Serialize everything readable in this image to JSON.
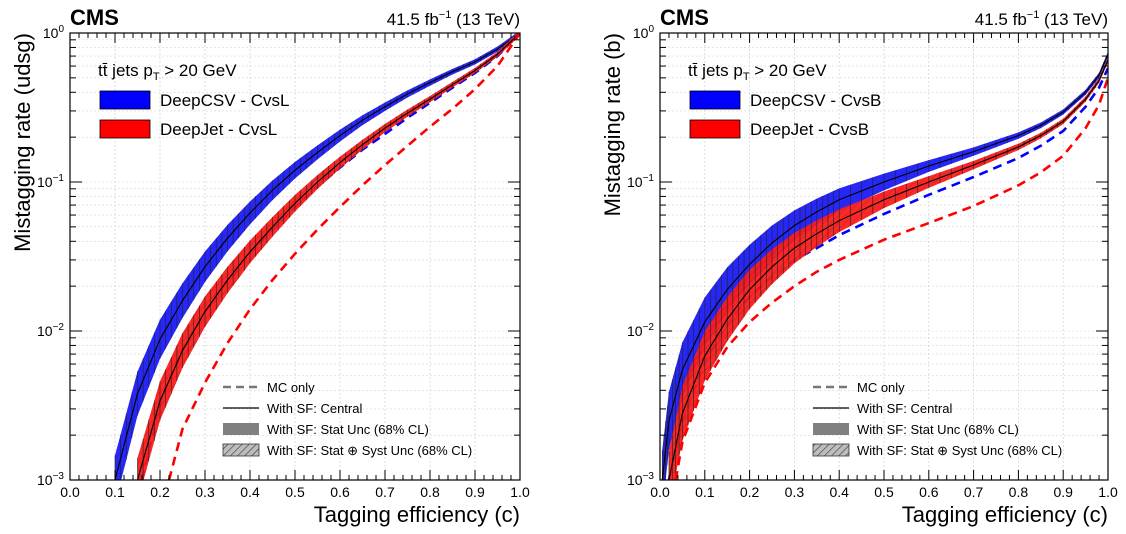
{
  "chart_data": [
    {
      "type": "line",
      "experiment": "CMS",
      "lumi_text": "41.5 fb",
      "lumi_sup": "−1",
      "energy_text": " (13 TeV)",
      "xlabel": "Tagging efficiency (c)",
      "ylabel": "Mistagging rate (udsg)",
      "xlim": [
        0.0,
        1.0
      ],
      "ylim": [
        0.001,
        1.0
      ],
      "yscale": "log",
      "grid": true,
      "x_ticks": [
        "0.0",
        "0.1",
        "0.2",
        "0.3",
        "0.4",
        "0.5",
        "0.6",
        "0.7",
        "0.8",
        "0.9",
        "1.0"
      ],
      "y_ticks": [
        {
          "base": "10",
          "exp": "−3",
          "value": 0.001
        },
        {
          "base": "10",
          "exp": "−2",
          "value": 0.01
        },
        {
          "base": "10",
          "exp": "−1",
          "value": 0.1
        },
        {
          "base": "10",
          "exp": "0",
          "value": 1
        }
      ],
      "selection_label": {
        "prefix": "tt̄ jets p",
        "sub": "T",
        "suffix": " >  20 GeV"
      },
      "legend_position": "top-left",
      "series": [
        {
          "name": "DeepCSV - CvsL",
          "color": "#0000ff",
          "band_color": "#1a1aff",
          "central": [
            [
              0.1,
              0.001
            ],
            [
              0.15,
              0.0038
            ],
            [
              0.2,
              0.0088
            ],
            [
              0.25,
              0.016
            ],
            [
              0.3,
              0.027
            ],
            [
              0.35,
              0.042
            ],
            [
              0.4,
              0.062
            ],
            [
              0.45,
              0.088
            ],
            [
              0.5,
              0.12
            ],
            [
              0.55,
              0.158
            ],
            [
              0.6,
              0.205
            ],
            [
              0.65,
              0.26
            ],
            [
              0.7,
              0.32
            ],
            [
              0.75,
              0.39
            ],
            [
              0.8,
              0.465
            ],
            [
              0.85,
              0.55
            ],
            [
              0.9,
              0.64
            ],
            [
              0.95,
              0.78
            ],
            [
              1.0,
              1.0
            ]
          ],
          "mc_only": [
            [
              0.16,
              0.001
            ],
            [
              0.2,
              0.0033
            ],
            [
              0.25,
              0.0075
            ],
            [
              0.3,
              0.0135
            ],
            [
              0.35,
              0.0215
            ],
            [
              0.4,
              0.033
            ],
            [
              0.45,
              0.048
            ],
            [
              0.5,
              0.068
            ],
            [
              0.55,
              0.093
            ],
            [
              0.6,
              0.125
            ],
            [
              0.65,
              0.165
            ],
            [
              0.7,
              0.21
            ],
            [
              0.75,
              0.27
            ],
            [
              0.8,
              0.34
            ],
            [
              0.85,
              0.43
            ],
            [
              0.9,
              0.54
            ],
            [
              0.95,
              0.7
            ],
            [
              1.0,
              1.0
            ]
          ]
        },
        {
          "name": "DeepJet - CvsL",
          "color": "#ff0000",
          "band_color": "#ff1a1a",
          "central": [
            [
              0.15,
              0.001
            ],
            [
              0.2,
              0.0034
            ],
            [
              0.25,
              0.0074
            ],
            [
              0.3,
              0.0135
            ],
            [
              0.35,
              0.022
            ],
            [
              0.4,
              0.034
            ],
            [
              0.45,
              0.05
            ],
            [
              0.5,
              0.072
            ],
            [
              0.55,
              0.1
            ],
            [
              0.6,
              0.135
            ],
            [
              0.65,
              0.178
            ],
            [
              0.7,
              0.23
            ],
            [
              0.75,
              0.29
            ],
            [
              0.8,
              0.36
            ],
            [
              0.85,
              0.45
            ],
            [
              0.9,
              0.56
            ],
            [
              0.95,
              0.72
            ],
            [
              1.0,
              1.0
            ]
          ],
          "mc_only": [
            [
              0.22,
              0.001
            ],
            [
              0.25,
              0.0022
            ],
            [
              0.3,
              0.0045
            ],
            [
              0.35,
              0.0083
            ],
            [
              0.4,
              0.014
            ],
            [
              0.45,
              0.022
            ],
            [
              0.5,
              0.033
            ],
            [
              0.55,
              0.048
            ],
            [
              0.6,
              0.068
            ],
            [
              0.65,
              0.095
            ],
            [
              0.7,
              0.13
            ],
            [
              0.75,
              0.175
            ],
            [
              0.8,
              0.235
            ],
            [
              0.85,
              0.31
            ],
            [
              0.9,
              0.42
            ],
            [
              0.95,
              0.6
            ],
            [
              1.0,
              1.0
            ]
          ]
        }
      ]
    },
    {
      "type": "line",
      "experiment": "CMS",
      "lumi_text": "41.5 fb",
      "lumi_sup": "−1",
      "energy_text": " (13 TeV)",
      "xlabel": "Tagging efficiency (c)",
      "ylabel": "Mistagging rate (b)",
      "xlim": [
        0.0,
        1.0
      ],
      "ylim": [
        0.001,
        1.0
      ],
      "yscale": "log",
      "grid": true,
      "x_ticks": [
        "0.0",
        "0.1",
        "0.2",
        "0.3",
        "0.4",
        "0.5",
        "0.6",
        "0.7",
        "0.8",
        "0.9",
        "1.0"
      ],
      "y_ticks": [
        {
          "base": "10",
          "exp": "−3",
          "value": 0.001
        },
        {
          "base": "10",
          "exp": "−2",
          "value": 0.01
        },
        {
          "base": "10",
          "exp": "−1",
          "value": 0.1
        },
        {
          "base": "10",
          "exp": "0",
          "value": 1
        }
      ],
      "selection_label": {
        "prefix": "tt̄ jets p",
        "sub": "T",
        "suffix": " >  20 GeV"
      },
      "legend_position": "top-left",
      "series": [
        {
          "name": "DeepCSV - CvsB",
          "color": "#0000ff",
          "band_color": "#1a1aff",
          "central": [
            [
              0.005,
              0.001
            ],
            [
              0.02,
              0.0025
            ],
            [
              0.05,
              0.0055
            ],
            [
              0.1,
              0.0115
            ],
            [
              0.15,
              0.019
            ],
            [
              0.2,
              0.028
            ],
            [
              0.25,
              0.039
            ],
            [
              0.3,
              0.051
            ],
            [
              0.35,
              0.063
            ],
            [
              0.4,
              0.076
            ],
            [
              0.5,
              0.1
            ],
            [
              0.6,
              0.128
            ],
            [
              0.7,
              0.16
            ],
            [
              0.8,
              0.205
            ],
            [
              0.85,
              0.24
            ],
            [
              0.9,
              0.295
            ],
            [
              0.95,
              0.4
            ],
            [
              0.98,
              0.52
            ],
            [
              1.0,
              0.72
            ]
          ],
          "mc_only": [
            [
              0.02,
              0.001
            ],
            [
              0.05,
              0.0025
            ],
            [
              0.1,
              0.0062
            ],
            [
              0.15,
              0.011
            ],
            [
              0.2,
              0.017
            ],
            [
              0.25,
              0.023
            ],
            [
              0.3,
              0.03
            ],
            [
              0.35,
              0.036
            ],
            [
              0.4,
              0.044
            ],
            [
              0.5,
              0.061
            ],
            [
              0.6,
              0.082
            ],
            [
              0.7,
              0.108
            ],
            [
              0.8,
              0.145
            ],
            [
              0.85,
              0.175
            ],
            [
              0.9,
              0.22
            ],
            [
              0.95,
              0.32
            ],
            [
              0.98,
              0.43
            ],
            [
              1.0,
              0.58
            ]
          ]
        },
        {
          "name": "DeepJet - CvsB",
          "color": "#ff0000",
          "band_color": "#ff1a1a",
          "central": [
            [
              0.02,
              0.001
            ],
            [
              0.05,
              0.0028
            ],
            [
              0.1,
              0.0068
            ],
            [
              0.15,
              0.012
            ],
            [
              0.2,
              0.019
            ],
            [
              0.25,
              0.027
            ],
            [
              0.3,
              0.036
            ],
            [
              0.35,
              0.045
            ],
            [
              0.4,
              0.055
            ],
            [
              0.5,
              0.076
            ],
            [
              0.6,
              0.1
            ],
            [
              0.7,
              0.13
            ],
            [
              0.8,
              0.172
            ],
            [
              0.85,
              0.205
            ],
            [
              0.9,
              0.255
            ],
            [
              0.95,
              0.36
            ],
            [
              0.98,
              0.48
            ],
            [
              1.0,
              0.66
            ]
          ],
          "mc_only": [
            [
              0.035,
              0.001
            ],
            [
              0.05,
              0.0018
            ],
            [
              0.1,
              0.0045
            ],
            [
              0.15,
              0.0078
            ],
            [
              0.2,
              0.0115
            ],
            [
              0.25,
              0.0155
            ],
            [
              0.3,
              0.02
            ],
            [
              0.35,
              0.025
            ],
            [
              0.4,
              0.03
            ],
            [
              0.5,
              0.041
            ],
            [
              0.6,
              0.053
            ],
            [
              0.7,
              0.069
            ],
            [
              0.8,
              0.095
            ],
            [
              0.85,
              0.116
            ],
            [
              0.9,
              0.15
            ],
            [
              0.95,
              0.23
            ],
            [
              0.98,
              0.33
            ],
            [
              1.0,
              0.5
            ]
          ]
        }
      ]
    }
  ],
  "bottom_legend": [
    {
      "label": "MC only",
      "style": "dashed"
    },
    {
      "label": "With SF: Central",
      "style": "solid"
    },
    {
      "label": "With SF: Stat Unc (68% CL)",
      "style": "filled"
    },
    {
      "label": "With SF: Stat ⊕ Syst Unc (68% CL)",
      "style": "hatched"
    }
  ]
}
